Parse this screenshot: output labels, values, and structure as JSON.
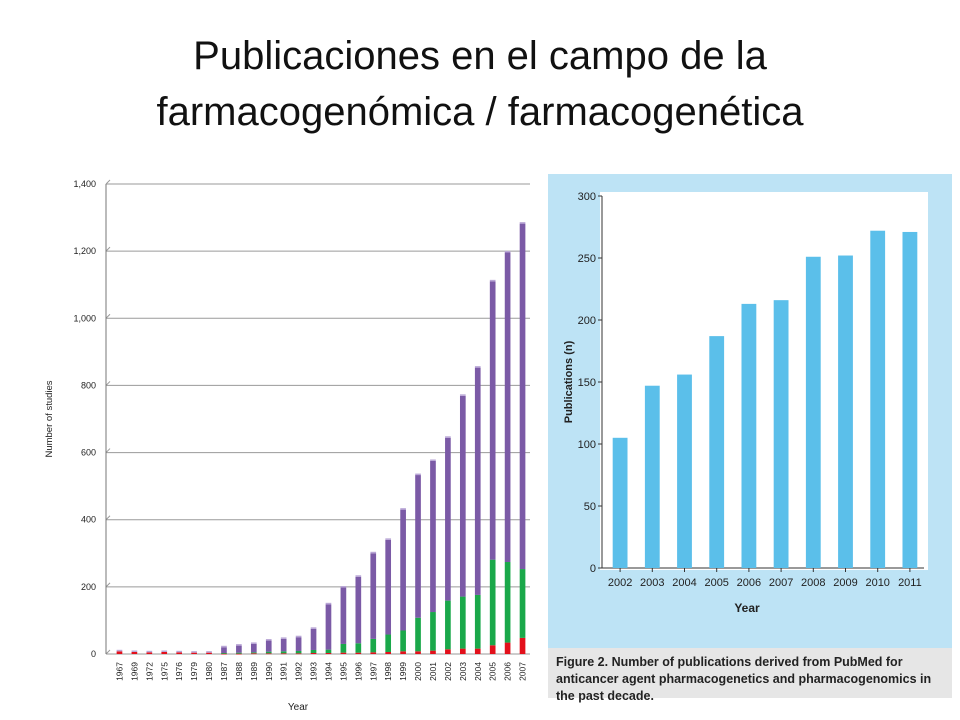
{
  "slide": {
    "title_line1": "Publicaciones en el campo de la",
    "title_line2": "farmacogenómica / farmacogenética",
    "caption": "Figure 2. Number of publications derived from PubMed for anticancer agent pharmacogenetics and pharmacogenomics in the past decade."
  },
  "chart_data": [
    {
      "type": "bar",
      "stacked": true,
      "xlabel": "Year",
      "ylabel": "Number of studies",
      "ylim": [
        0,
        1400
      ],
      "yticks": [
        "0",
        "200",
        "400",
        "600",
        "800",
        "1,000",
        "1,200",
        "1,400"
      ],
      "ytick_values": [
        0,
        200,
        400,
        600,
        800,
        1000,
        1200,
        1400
      ],
      "grid": true,
      "colors": [
        "#e3101b",
        "#1aa84a",
        "#7b5aa6"
      ],
      "categories": [
        "1967",
        "1969",
        "1972",
        "1975",
        "1976",
        "1979",
        "1980",
        "1987",
        "1988",
        "1989",
        "1990",
        "1991",
        "1992",
        "1993",
        "1994",
        "1995",
        "1996",
        "1997",
        "1998",
        "1999",
        "2000",
        "2001",
        "2002",
        "2003",
        "2004",
        "2005",
        "2006",
        "2007"
      ],
      "series": [
        {
          "values": [
            8,
            6,
            5,
            6,
            5,
            4,
            4,
            1,
            1,
            2,
            2,
            2,
            2,
            3,
            3,
            4,
            4,
            5,
            6,
            8,
            8,
            10,
            14,
            16,
            16,
            26,
            34,
            48
          ]
        },
        {
          "values": [
            0,
            0,
            0,
            0,
            0,
            0,
            0,
            2,
            3,
            3,
            5,
            6,
            7,
            9,
            10,
            26,
            28,
            40,
            52,
            62,
            100,
            115,
            145,
            155,
            160,
            255,
            240,
            205
          ]
        },
        {
          "values": [
            0,
            0,
            0,
            0,
            0,
            0,
            0,
            17,
            21,
            25,
            33,
            37,
            41,
            63,
            135,
            168,
            198,
            255,
            282,
            360,
            425,
            450,
            485,
            598,
            677,
            829,
            922,
            1029
          ]
        }
      ]
    },
    {
      "type": "bar",
      "xlabel": "Year",
      "ylabel": "Publications (n)",
      "ylim": [
        0,
        300
      ],
      "yticks": [
        "0",
        "50",
        "100",
        "150",
        "200",
        "250",
        "300"
      ],
      "ytick_values": [
        0,
        50,
        100,
        150,
        200,
        250,
        300
      ],
      "color": "#5bbfea",
      "panel_background": "#bde3f5",
      "categories": [
        "2002",
        "2003",
        "2004",
        "2005",
        "2006",
        "2007",
        "2008",
        "2009",
        "2010",
        "2011"
      ],
      "values": [
        105,
        147,
        156,
        187,
        213,
        216,
        251,
        252,
        272,
        271
      ]
    }
  ]
}
